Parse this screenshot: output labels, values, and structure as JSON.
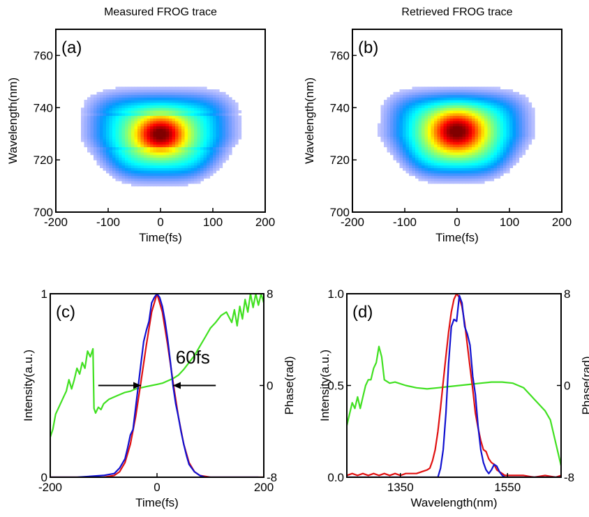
{
  "chart_data": [
    {
      "id": "a",
      "type": "heatmap",
      "title": "Measured FROG trace",
      "panel_label": "(a)",
      "xlabel": "Time(fs)",
      "ylabel": "Wavelength(nm)",
      "xlim": [
        -200,
        200
      ],
      "ylim": [
        700,
        770
      ],
      "xticks": [
        -200,
        -100,
        0,
        100,
        200
      ],
      "yticks": [
        700,
        720,
        740,
        760
      ],
      "colormap": "jet",
      "peak": {
        "x": 0,
        "y": 730,
        "value": 1.0
      },
      "distribution": {
        "center_time_fs": 0,
        "center_wavelength_nm": 730,
        "visible_time_range_fs": [
          -150,
          150
        ],
        "visible_wavelength_range_nm": [
          711,
          747
        ],
        "note": "horizontal banding near 737 and 724 nm"
      }
    },
    {
      "id": "b",
      "type": "heatmap",
      "title": "Retrieved FROG trace",
      "panel_label": "(b)",
      "xlabel": "Time(fs)",
      "ylabel": "Wavelength(nm)",
      "xlim": [
        -200,
        200
      ],
      "ylim": [
        700,
        770
      ],
      "xticks": [
        -200,
        -100,
        0,
        100,
        200
      ],
      "yticks": [
        700,
        720,
        740,
        760
      ],
      "colormap": "jet",
      "peak": {
        "x": 0,
        "y": 731,
        "value": 1.0
      },
      "distribution": {
        "center_time_fs": 0,
        "center_wavelength_nm": 731,
        "visible_time_range_fs": [
          -150,
          140
        ],
        "visible_wavelength_range_nm": [
          712,
          747
        ]
      }
    },
    {
      "id": "c",
      "type": "line",
      "panel_label": "(c)",
      "xlabel": "Time(fs)",
      "ylabel": "Intensity(a.u.)",
      "ylabel_right": "Phase(rad)",
      "xlim": [
        -200,
        200
      ],
      "ylim": [
        0,
        1
      ],
      "ylim_right": [
        -8,
        8
      ],
      "xticks": [
        -200,
        0,
        200
      ],
      "yticks": [
        0,
        1
      ],
      "yticks_right": [
        -8,
        0,
        8
      ],
      "annotation": {
        "text": "60fs",
        "arrow_left": [
          -110,
          -30
        ],
        "arrow_right": [
          110,
          30
        ],
        "y": 0.5
      },
      "series": [
        {
          "color": "#1010d0",
          "axis": "left",
          "x": [
            -200,
            -150,
            -100,
            -80,
            -70,
            -60,
            -55,
            -50,
            -45,
            -40,
            -35,
            -30,
            -25,
            -20,
            -15,
            -10,
            -5,
            0,
            5,
            10,
            15,
            20,
            25,
            30,
            35,
            40,
            45,
            50,
            55,
            60,
            70,
            80,
            90,
            110,
            150,
            190
          ],
          "values": [
            0,
            0,
            0.01,
            0.02,
            0.05,
            0.1,
            0.16,
            0.23,
            0.26,
            0.38,
            0.5,
            0.62,
            0.74,
            0.8,
            0.85,
            0.95,
            0.98,
            1.0,
            0.98,
            0.93,
            0.85,
            0.75,
            0.63,
            0.5,
            0.4,
            0.33,
            0.25,
            0.18,
            0.12,
            0.07,
            0.03,
            0.01,
            0,
            0,
            0,
            0
          ]
        },
        {
          "color": "#e01010",
          "axis": "left",
          "x": [
            -200,
            -100,
            -80,
            -70,
            -60,
            -50,
            -40,
            -30,
            -20,
            -10,
            0,
            10,
            20,
            30,
            40,
            50,
            60,
            70,
            80,
            100,
            200
          ],
          "values": [
            0,
            0,
            0.01,
            0.03,
            0.08,
            0.18,
            0.33,
            0.52,
            0.72,
            0.9,
            1.0,
            0.9,
            0.72,
            0.52,
            0.33,
            0.18,
            0.08,
            0.03,
            0.01,
            0,
            0
          ]
        },
        {
          "color": "#40e020",
          "axis": "right",
          "x": [
            -200,
            -195,
            -190,
            -185,
            -180,
            -175,
            -170,
            -165,
            -160,
            -155,
            -150,
            -145,
            -140,
            -135,
            -130,
            -125,
            -120,
            -118,
            -115,
            -110,
            -105,
            -100,
            -95,
            -90,
            -80,
            -70,
            -60,
            -50,
            -40,
            -30,
            -20,
            -10,
            0,
            10,
            20,
            30,
            40,
            50,
            60,
            70,
            80,
            90,
            100,
            110,
            120,
            130,
            140,
            145,
            150,
            155,
            160,
            165,
            170,
            175,
            180,
            185,
            190,
            195,
            200
          ],
          "values": [
            -4.5,
            -3.8,
            -2.5,
            -2.0,
            -1.5,
            -1.0,
            -0.5,
            0.5,
            -0.3,
            0.5,
            1.5,
            1.0,
            2.0,
            1.5,
            3.0,
            2.5,
            3.2,
            -2.0,
            -2.4,
            -1.9,
            -2.1,
            -1.6,
            -1.4,
            -1.2,
            -1.0,
            -0.8,
            -0.6,
            -0.5,
            -0.3,
            -0.2,
            -0.1,
            0,
            0.1,
            0.2,
            0.4,
            0.6,
            0.9,
            1.4,
            2.0,
            2.6,
            3.4,
            4.2,
            5.0,
            5.5,
            6.1,
            6.4,
            5.5,
            6.6,
            5.2,
            6.9,
            5.8,
            7.5,
            6.4,
            8.0,
            6.8,
            8.0,
            7.0,
            8.0,
            7.2
          ]
        }
      ]
    },
    {
      "id": "d",
      "type": "line",
      "panel_label": "(d)",
      "xlabel": "Wavelength(nm)",
      "ylabel": "Intensity(a.u.)",
      "ylabel_right": "Phase(rad)",
      "xlim": [
        1250,
        1650
      ],
      "ylim": [
        0,
        1.0
      ],
      "ylim_right": [
        -8,
        8
      ],
      "xticks": [
        1350,
        1550
      ],
      "yticks": [
        0.0,
        0.5,
        1.0
      ],
      "yticks_right": [
        -8,
        0,
        8
      ],
      "series": [
        {
          "color": "#1010d0",
          "axis": "left",
          "x": [
            1250,
            1400,
            1420,
            1425,
            1430,
            1435,
            1440,
            1445,
            1450,
            1455,
            1460,
            1465,
            1470,
            1475,
            1480,
            1485,
            1490,
            1495,
            1500,
            1505,
            1510,
            1515,
            1520,
            1525,
            1530,
            1535,
            1540,
            1545,
            1550,
            1650
          ],
          "values": [
            0,
            0,
            0,
            0.05,
            0.15,
            0.35,
            0.62,
            0.82,
            0.86,
            0.85,
            0.99,
            0.95,
            0.82,
            0.78,
            0.72,
            0.55,
            0.45,
            0.28,
            0.15,
            0.08,
            0.04,
            0.02,
            0.04,
            0.07,
            0.06,
            0.03,
            0.01,
            0,
            0,
            0
          ]
        },
        {
          "color": "#e01010",
          "axis": "left",
          "x": [
            1250,
            1260,
            1270,
            1280,
            1290,
            1300,
            1310,
            1320,
            1330,
            1340,
            1350,
            1360,
            1370,
            1380,
            1390,
            1400,
            1405,
            1410,
            1415,
            1420,
            1425,
            1430,
            1435,
            1440,
            1445,
            1450,
            1455,
            1460,
            1465,
            1470,
            1475,
            1480,
            1485,
            1490,
            1495,
            1500,
            1505,
            1510,
            1515,
            1520,
            1525,
            1530,
            1535,
            1540,
            1545,
            1550,
            1560,
            1580,
            1600,
            1620,
            1640,
            1650
          ],
          "values": [
            0.01,
            0.02,
            0.01,
            0.02,
            0.01,
            0.02,
            0.01,
            0.02,
            0.01,
            0.02,
            0.01,
            0.02,
            0.02,
            0.02,
            0.03,
            0.04,
            0.05,
            0.09,
            0.15,
            0.25,
            0.38,
            0.52,
            0.66,
            0.79,
            0.9,
            0.97,
            1.0,
            0.98,
            0.93,
            0.84,
            0.72,
            0.6,
            0.48,
            0.35,
            0.27,
            0.2,
            0.15,
            0.14,
            0.1,
            0.08,
            0.07,
            0.04,
            0.03,
            0.02,
            0.01,
            0.01,
            0.01,
            0.01,
            0,
            0.01,
            0,
            0.01
          ]
        },
        {
          "color": "#40e020",
          "axis": "right",
          "x": [
            1250,
            1255,
            1260,
            1265,
            1270,
            1275,
            1280,
            1285,
            1290,
            1295,
            1300,
            1305,
            1310,
            1315,
            1320,
            1330,
            1340,
            1360,
            1380,
            1400,
            1420,
            1440,
            1460,
            1480,
            1500,
            1520,
            1540,
            1560,
            1580,
            1600,
            1620,
            1630,
            1640,
            1650
          ],
          "values": [
            -3.5,
            -2.5,
            -1.5,
            -2.0,
            -1.0,
            -2.0,
            -1.0,
            0,
            0.5,
            0.5,
            1.5,
            2.0,
            3.4,
            2.5,
            0.5,
            0.2,
            0.3,
            0,
            -0.2,
            -0.3,
            -0.2,
            -0.1,
            0,
            0.1,
            0.2,
            0.3,
            0.3,
            0.2,
            -0.2,
            -1.2,
            -2.2,
            -3.0,
            -5.0,
            -7.0
          ]
        }
      ]
    }
  ]
}
